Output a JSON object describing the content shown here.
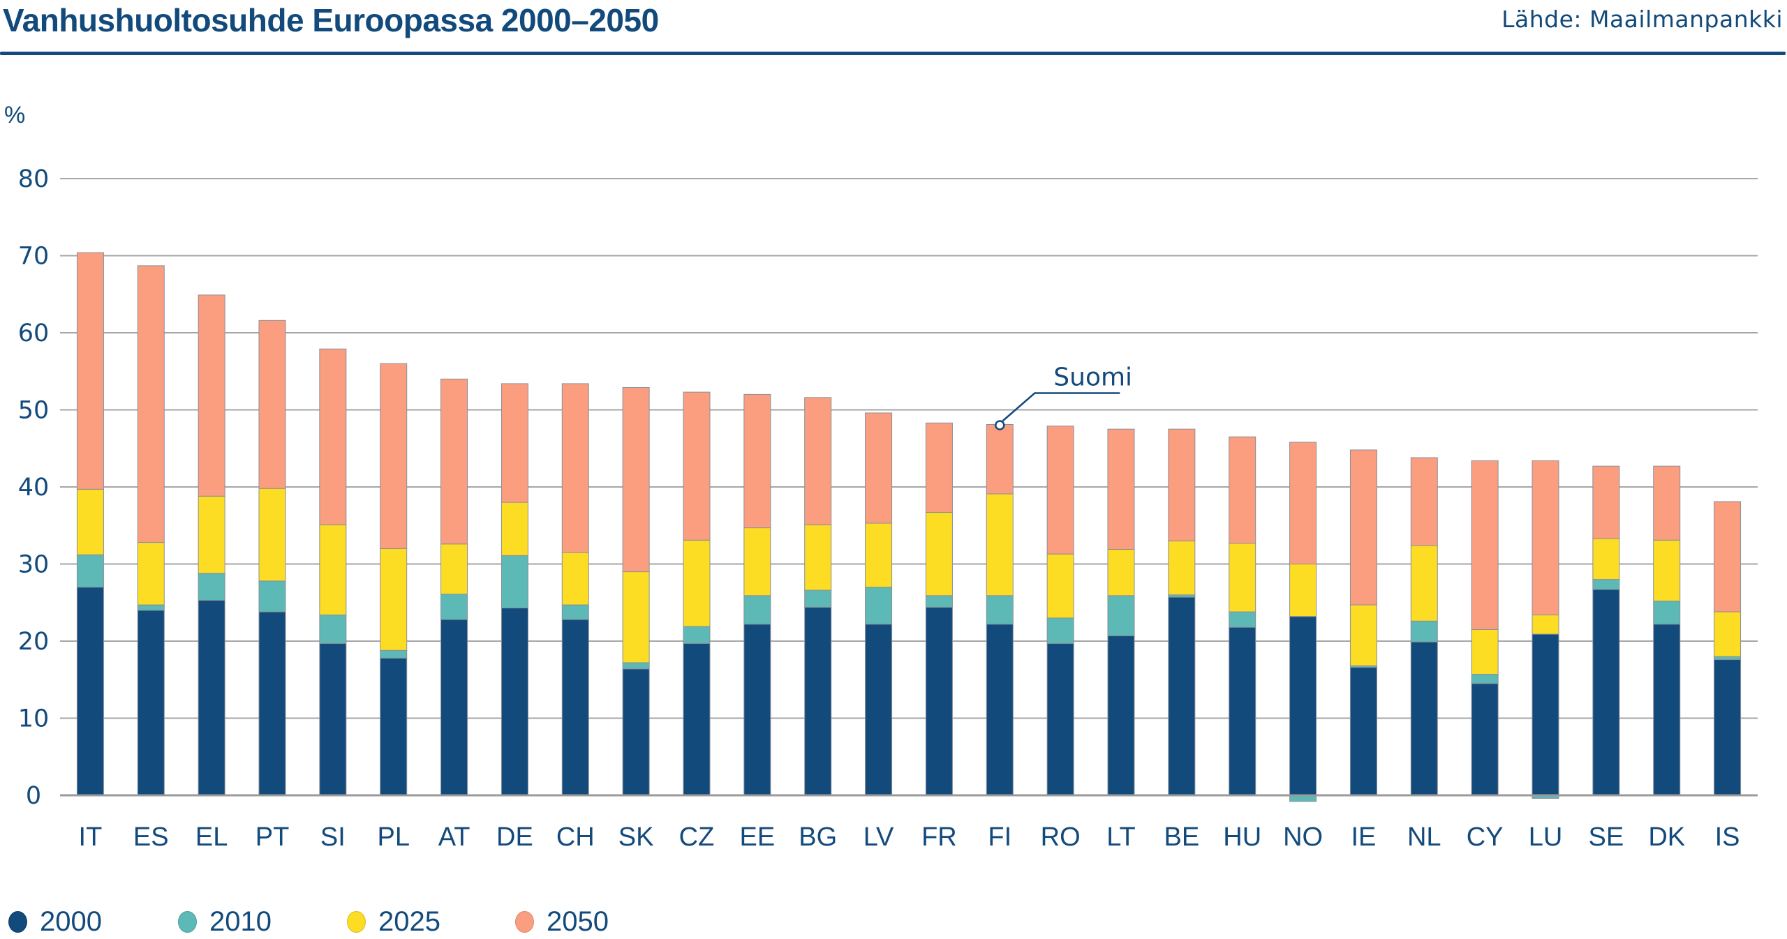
{
  "header": {
    "title": "Vanhushuoltosuhde Euroopassa 2000–2050",
    "source": "Lähde: Maailmanpankki"
  },
  "colors": {
    "text": "#134a7c",
    "rule": "#134a7c",
    "grid": "#a6a6a6",
    "2000": "#134a7c",
    "2010": "#5cb9b6",
    "2025": "#fddc24",
    "2050": "#fb9e80"
  },
  "chart_data": {
    "type": "bar",
    "stacked": true,
    "title": "Vanhushuoltosuhde Euroopassa 2000–2050",
    "xlabel": "",
    "ylabel": "%",
    "ylim": [
      0,
      80
    ],
    "yticks": [
      0,
      10,
      20,
      30,
      40,
      50,
      60,
      70,
      80
    ],
    "grid": true,
    "legend_position": "bottom-left",
    "categories": [
      "IT",
      "ES",
      "EL",
      "PT",
      "SI",
      "PL",
      "AT",
      "DE",
      "CH",
      "SK",
      "CZ",
      "EE",
      "BG",
      "LV",
      "FR",
      "FI",
      "RO",
      "LT",
      "BE",
      "HU",
      "NO",
      "IE",
      "NL",
      "CY",
      "LU",
      "SE",
      "DK",
      "IS"
    ],
    "series": [
      {
        "name": "2000",
        "values": [
          27.0,
          24.0,
          25.3,
          23.8,
          19.7,
          17.8,
          22.8,
          24.3,
          22.8,
          16.4,
          19.7,
          22.2,
          24.4,
          22.2,
          24.4,
          22.2,
          19.7,
          20.7,
          25.7,
          21.8,
          23.2,
          16.6,
          19.9,
          14.5,
          20.9,
          26.7,
          22.2,
          17.6
        ]
      },
      {
        "name": "2010",
        "values": [
          4.2,
          0.7,
          3.5,
          4.0,
          3.7,
          1.0,
          3.3,
          6.8,
          1.9,
          0.8,
          2.2,
          3.7,
          2.2,
          4.8,
          1.5,
          3.7,
          3.3,
          5.2,
          0.3,
          2.0,
          -0.8,
          0.2,
          2.7,
          1.2,
          -0.4,
          1.3,
          3.0,
          0.4
        ]
      },
      {
        "name": "2025",
        "values": [
          8.5,
          8.1,
          10.0,
          12.0,
          11.7,
          13.2,
          6.5,
          6.9,
          6.8,
          11.8,
          11.2,
          8.8,
          8.5,
          8.3,
          10.8,
          13.2,
          8.3,
          6.0,
          7.0,
          8.9,
          6.8,
          7.9,
          9.8,
          5.8,
          2.5,
          5.3,
          7.9,
          5.8
        ]
      },
      {
        "name": "2050",
        "values": [
          30.7,
          35.9,
          26.1,
          21.8,
          22.8,
          24.0,
          21.4,
          15.4,
          21.9,
          23.9,
          19.2,
          17.3,
          16.5,
          14.3,
          11.6,
          9.0,
          16.6,
          15.6,
          14.5,
          13.8,
          15.8,
          20.1,
          11.4,
          21.9,
          20.0,
          9.4,
          9.6,
          14.3
        ]
      }
    ],
    "annotations": [
      {
        "text": "Suomi",
        "category": "FI"
      }
    ]
  },
  "legend": [
    {
      "label": "2000",
      "key": "2000"
    },
    {
      "label": "2010",
      "key": "2010"
    },
    {
      "label": "2025",
      "key": "2025"
    },
    {
      "label": "2050",
      "key": "2050"
    }
  ]
}
